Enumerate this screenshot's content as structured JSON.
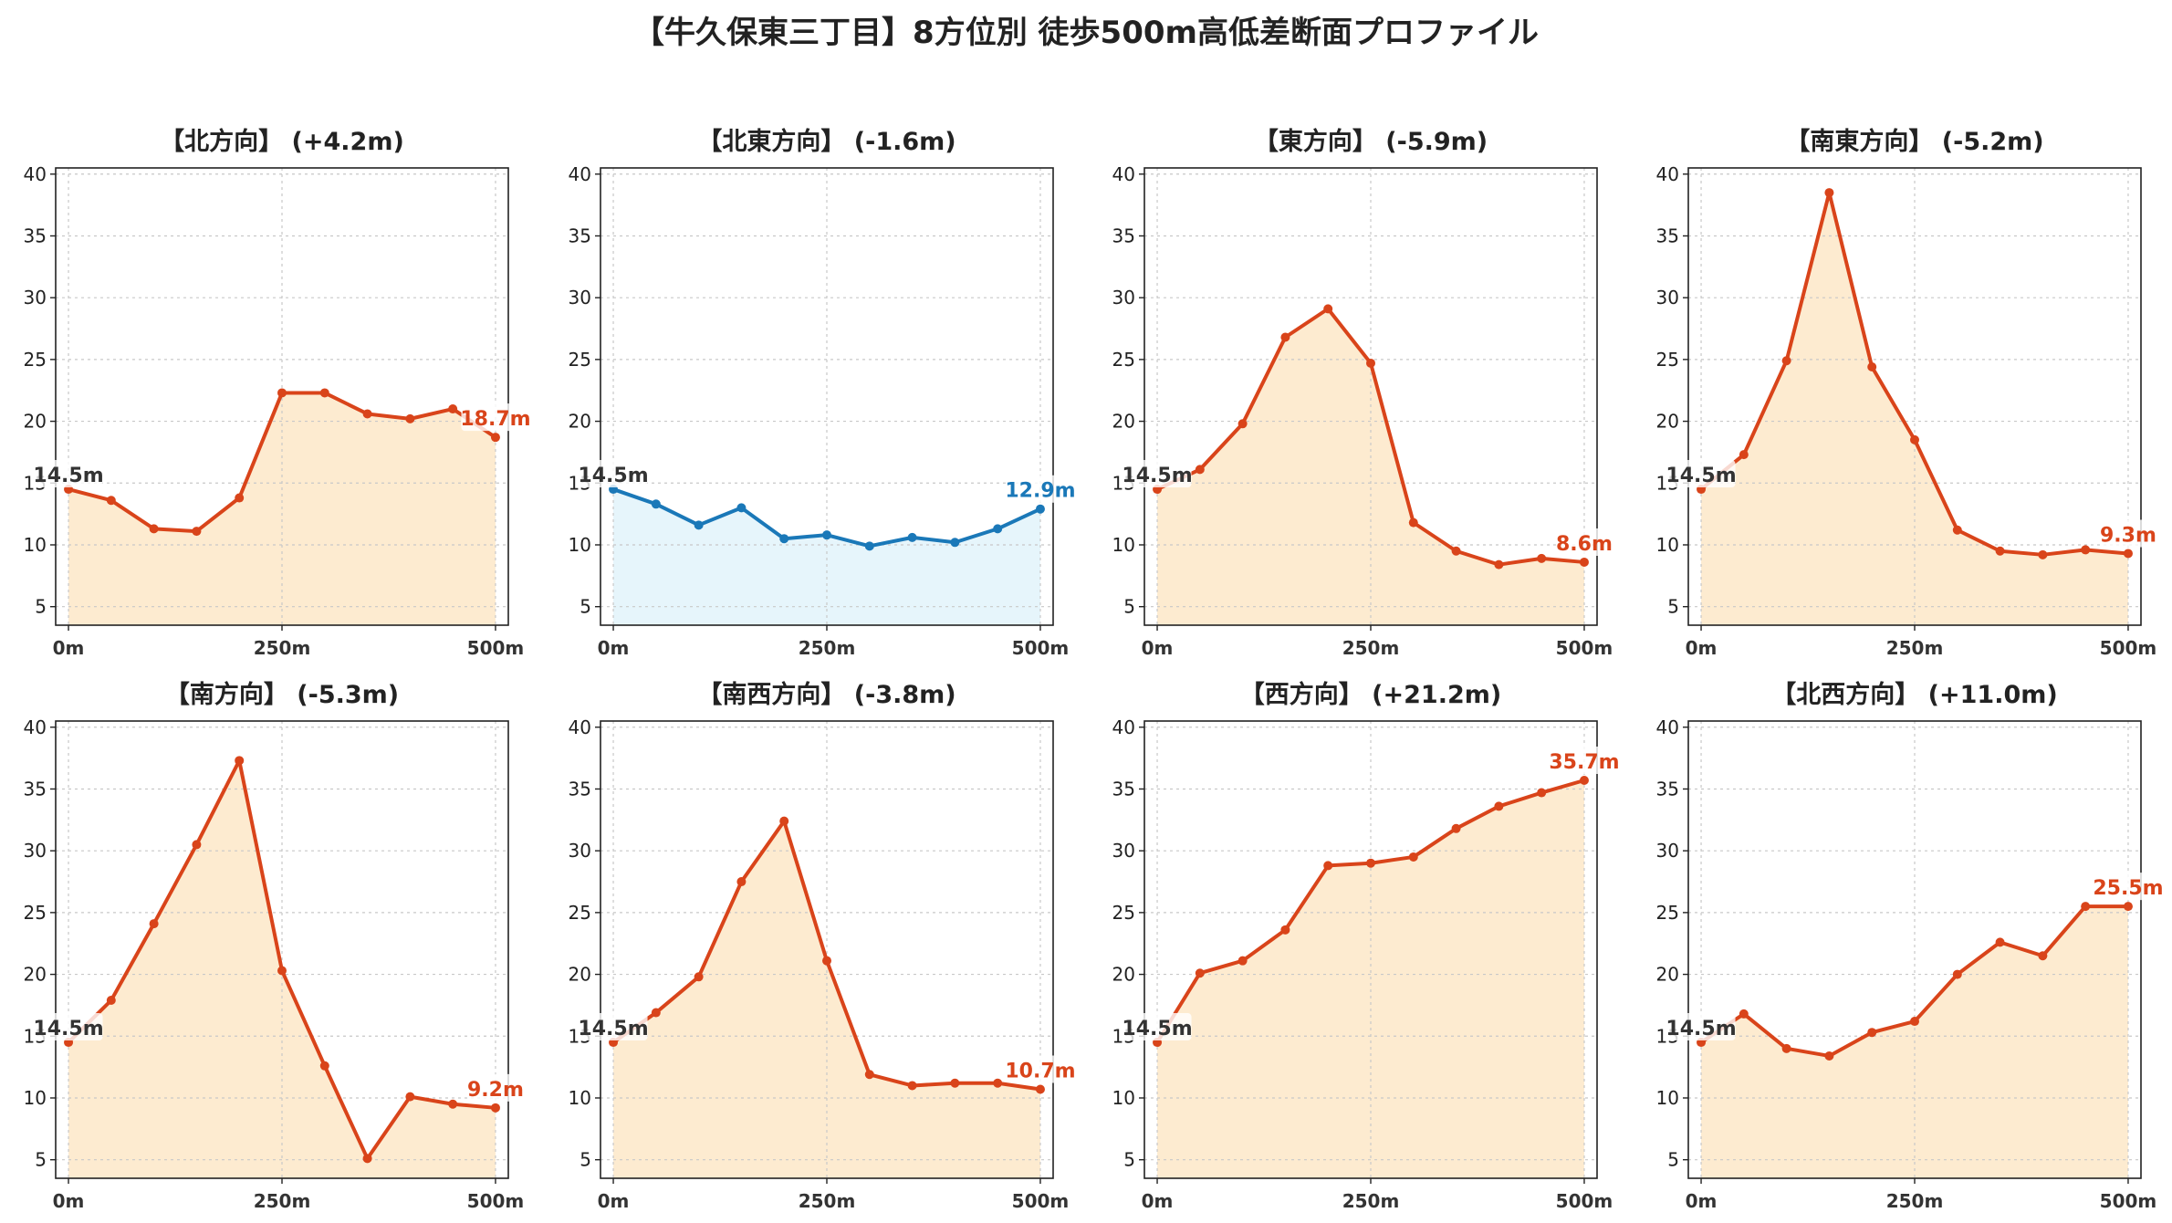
{
  "title": "【牛久保東三丁目】8方位別 徒歩500m高低差断面プロファイル",
  "colors": {
    "up": "#d9441a",
    "up_fill": "#fdebd0",
    "down": "#1a78b8",
    "down_fill": "#e6f5fb",
    "start_label": "#333333"
  },
  "chart_data": [
    {
      "type": "area",
      "title": "【北方向】 (+4.2m)",
      "color_scheme": "up",
      "x": [
        0,
        50,
        100,
        150,
        200,
        250,
        300,
        350,
        400,
        450,
        500
      ],
      "values": [
        14.5,
        13.6,
        11.3,
        11.1,
        13.8,
        22.3,
        22.3,
        20.6,
        20.2,
        21.0,
        18.7
      ],
      "start_label": "14.5m",
      "end_label": "18.7m",
      "xticks": [
        "0m",
        "250m",
        "500m"
      ],
      "xtick_values": [
        0,
        250,
        500
      ],
      "yticks": [
        "5",
        "10",
        "15",
        "20",
        "25",
        "30",
        "35",
        "40"
      ],
      "ylim": [
        3.5,
        40.5
      ],
      "xlim": [
        -15,
        515
      ],
      "grid": true
    },
    {
      "type": "area",
      "title": "【北東方向】 (-1.6m)",
      "color_scheme": "down",
      "x": [
        0,
        50,
        100,
        150,
        200,
        250,
        300,
        350,
        400,
        450,
        500
      ],
      "values": [
        14.5,
        13.3,
        11.6,
        13.0,
        10.5,
        10.8,
        9.9,
        10.6,
        10.2,
        11.3,
        12.9
      ],
      "start_label": "14.5m",
      "end_label": "12.9m",
      "xticks": [
        "0m",
        "250m",
        "500m"
      ],
      "xtick_values": [
        0,
        250,
        500
      ],
      "yticks": [
        "5",
        "10",
        "15",
        "20",
        "25",
        "30",
        "35",
        "40"
      ],
      "ylim": [
        3.5,
        40.5
      ],
      "xlim": [
        -15,
        515
      ],
      "grid": true
    },
    {
      "type": "area",
      "title": "【東方向】 (-5.9m)",
      "color_scheme": "up",
      "x": [
        0,
        50,
        100,
        150,
        200,
        250,
        300,
        350,
        400,
        450,
        500
      ],
      "values": [
        14.5,
        16.1,
        19.8,
        26.8,
        29.1,
        24.7,
        11.8,
        9.5,
        8.4,
        8.9,
        8.6
      ],
      "start_label": "14.5m",
      "end_label": "8.6m",
      "xticks": [
        "0m",
        "250m",
        "500m"
      ],
      "xtick_values": [
        0,
        250,
        500
      ],
      "yticks": [
        "5",
        "10",
        "15",
        "20",
        "25",
        "30",
        "35",
        "40"
      ],
      "ylim": [
        3.5,
        40.5
      ],
      "xlim": [
        -15,
        515
      ],
      "grid": true
    },
    {
      "type": "area",
      "title": "【南東方向】 (-5.2m)",
      "color_scheme": "up",
      "x": [
        0,
        50,
        100,
        150,
        200,
        250,
        300,
        350,
        400,
        450,
        500
      ],
      "values": [
        14.5,
        17.3,
        24.9,
        38.5,
        24.4,
        18.5,
        11.2,
        9.5,
        9.2,
        9.6,
        9.3
      ],
      "start_label": "14.5m",
      "end_label": "9.3m",
      "xticks": [
        "0m",
        "250m",
        "500m"
      ],
      "xtick_values": [
        0,
        250,
        500
      ],
      "yticks": [
        "5",
        "10",
        "15",
        "20",
        "25",
        "30",
        "35",
        "40"
      ],
      "ylim": [
        3.5,
        40.5
      ],
      "xlim": [
        -15,
        515
      ],
      "grid": true
    },
    {
      "type": "area",
      "title": "【南方向】 (-5.3m)",
      "color_scheme": "up",
      "x": [
        0,
        50,
        100,
        150,
        200,
        250,
        300,
        350,
        400,
        450,
        500
      ],
      "values": [
        14.5,
        17.9,
        24.1,
        30.5,
        37.3,
        20.3,
        12.6,
        5.1,
        10.1,
        9.5,
        9.2
      ],
      "start_label": "14.5m",
      "end_label": "9.2m",
      "xticks": [
        "0m",
        "250m",
        "500m"
      ],
      "xtick_values": [
        0,
        250,
        500
      ],
      "yticks": [
        "5",
        "10",
        "15",
        "20",
        "25",
        "30",
        "35",
        "40"
      ],
      "ylim": [
        3.5,
        40.5
      ],
      "xlim": [
        -15,
        515
      ],
      "grid": true
    },
    {
      "type": "area",
      "title": "【南西方向】 (-3.8m)",
      "color_scheme": "up",
      "x": [
        0,
        50,
        100,
        150,
        200,
        250,
        300,
        350,
        400,
        450,
        500
      ],
      "values": [
        14.5,
        16.9,
        19.8,
        27.5,
        32.4,
        21.1,
        11.9,
        11.0,
        11.2,
        11.2,
        10.7
      ],
      "start_label": "14.5m",
      "end_label": "10.7m",
      "xticks": [
        "0m",
        "250m",
        "500m"
      ],
      "xtick_values": [
        0,
        250,
        500
      ],
      "yticks": [
        "5",
        "10",
        "15",
        "20",
        "25",
        "30",
        "35",
        "40"
      ],
      "ylim": [
        3.5,
        40.5
      ],
      "xlim": [
        -15,
        515
      ],
      "grid": true
    },
    {
      "type": "area",
      "title": "【西方向】 (+21.2m)",
      "color_scheme": "up",
      "x": [
        0,
        50,
        100,
        150,
        200,
        250,
        300,
        350,
        400,
        450,
        500
      ],
      "values": [
        14.5,
        20.1,
        21.1,
        23.6,
        28.8,
        29.0,
        29.5,
        31.8,
        33.6,
        34.7,
        35.7
      ],
      "start_label": "14.5m",
      "end_label": "35.7m",
      "xticks": [
        "0m",
        "250m",
        "500m"
      ],
      "xtick_values": [
        0,
        250,
        500
      ],
      "yticks": [
        "5",
        "10",
        "15",
        "20",
        "25",
        "30",
        "35",
        "40"
      ],
      "ylim": [
        3.5,
        40.5
      ],
      "xlim": [
        -15,
        515
      ],
      "grid": true
    },
    {
      "type": "area",
      "title": "【北西方向】 (+11.0m)",
      "color_scheme": "up",
      "x": [
        0,
        50,
        100,
        150,
        200,
        250,
        300,
        350,
        400,
        450,
        500
      ],
      "values": [
        14.5,
        16.8,
        14.0,
        13.4,
        15.3,
        16.2,
        20.0,
        22.6,
        21.5,
        25.5,
        25.5
      ],
      "start_label": "14.5m",
      "end_label": "25.5m",
      "xticks": [
        "0m",
        "250m",
        "500m"
      ],
      "xtick_values": [
        0,
        250,
        500
      ],
      "yticks": [
        "5",
        "10",
        "15",
        "20",
        "25",
        "30",
        "35",
        "40"
      ],
      "ylim": [
        3.5,
        40.5
      ],
      "xlim": [
        -15,
        515
      ],
      "grid": true
    }
  ]
}
